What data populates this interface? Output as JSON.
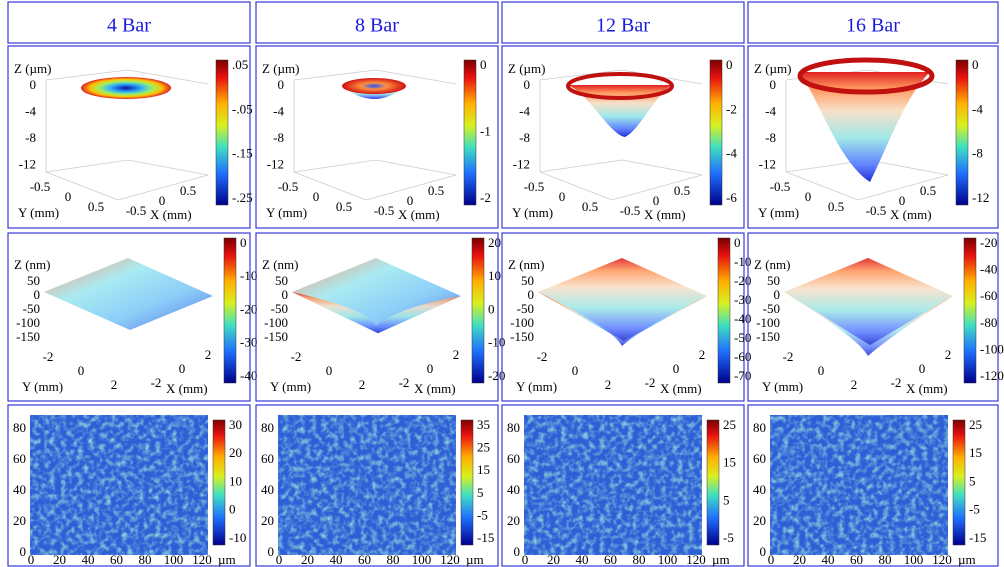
{
  "columns": [
    {
      "header": "4 Bar",
      "row1": {
        "z_label": "Z (µm)",
        "z_ticks": [
          "0",
          "-4",
          "-8",
          "-12"
        ],
        "y_label": "Y (mm)",
        "y_ticks": [
          "-0.5",
          "0",
          "0.5"
        ],
        "x_label": "X (mm)",
        "x_ticks": [
          "-0.5",
          "0",
          "0.5"
        ],
        "colorbar": [
          ".05",
          "-.05",
          "-.15",
          "-.25"
        ]
      },
      "row2": {
        "z_label": "Z (nm)",
        "z_ticks": [
          "50",
          "0",
          "-50",
          "-100",
          "-150"
        ],
        "y_label": "Y (mm)",
        "y_ticks": [
          "-2",
          "0",
          "2"
        ],
        "x_label": "X (mm)",
        "x_ticks": [
          "-2",
          "0",
          "2"
        ],
        "colorbar": [
          "0",
          "-10",
          "-20",
          "-30",
          "-40"
        ]
      },
      "row3": {
        "y_ticks": [
          "0",
          "20",
          "40",
          "60",
          "80"
        ],
        "x_ticks": [
          "0",
          "20",
          "40",
          "60",
          "80",
          "100",
          "120"
        ],
        "unit": "µm",
        "colorbar": [
          "30",
          "20",
          "10",
          "0",
          "-10"
        ]
      }
    },
    {
      "header": "8 Bar",
      "row1": {
        "z_label": "Z (µm)",
        "z_ticks": [
          "0",
          "-4",
          "-8",
          "-12"
        ],
        "y_label": "Y (mm)",
        "y_ticks": [
          "-0.5",
          "0",
          "0.5"
        ],
        "x_label": "X (mm)",
        "x_ticks": [
          "-0.5",
          "0",
          "0.5"
        ],
        "colorbar": [
          "0",
          "-1",
          "-2"
        ]
      },
      "row2": {
        "z_label": "Z (nm)",
        "z_ticks": [
          "50",
          "0",
          "-50",
          "-100",
          "-150"
        ],
        "y_label": "Y (mm)",
        "y_ticks": [
          "-2",
          "0",
          "2"
        ],
        "x_label": "X (mm)",
        "x_ticks": [
          "-2",
          "0",
          "2"
        ],
        "colorbar": [
          "20",
          "10",
          "0",
          "-10",
          "-20"
        ]
      },
      "row3": {
        "y_ticks": [
          "0",
          "20",
          "40",
          "60",
          "80"
        ],
        "x_ticks": [
          "0",
          "20",
          "40",
          "60",
          "80",
          "100",
          "120"
        ],
        "unit": "µm",
        "colorbar": [
          "35",
          "25",
          "15",
          "5",
          "-5",
          "-15"
        ]
      }
    },
    {
      "header": "12 Bar",
      "row1": {
        "z_label": "Z (µm)",
        "z_ticks": [
          "0",
          "-4",
          "-8",
          "-12"
        ],
        "y_label": "Y (mm)",
        "y_ticks": [
          "-0.5",
          "0",
          "0.5"
        ],
        "x_label": "X (mm)",
        "x_ticks": [
          "-0.5",
          "0",
          "0.5"
        ],
        "colorbar": [
          "0",
          "-2",
          "-4",
          "-6"
        ]
      },
      "row2": {
        "z_label": "Z (nm)",
        "z_ticks": [
          "50",
          "0",
          "-50",
          "-100",
          "-150"
        ],
        "y_label": "Y (mm)",
        "y_ticks": [
          "-2",
          "0",
          "2"
        ],
        "x_label": "X (mm)",
        "x_ticks": [
          "-2",
          "0",
          "2"
        ],
        "colorbar": [
          "0",
          "-10",
          "-20",
          "-30",
          "-40",
          "-50",
          "-60",
          "-70"
        ]
      },
      "row3": {
        "y_ticks": [
          "0",
          "20",
          "40",
          "60",
          "80"
        ],
        "x_ticks": [
          "0",
          "20",
          "40",
          "60",
          "80",
          "100",
          "120"
        ],
        "unit": "µm",
        "colorbar": [
          "25",
          "15",
          "5",
          "-5"
        ]
      }
    },
    {
      "header": "16 Bar",
      "row1": {
        "z_label": "Z (µm)",
        "z_ticks": [
          "0",
          "-4",
          "-8",
          "-12"
        ],
        "y_label": "Y (mm)",
        "y_ticks": [
          "-0.5",
          "0",
          "0.5"
        ],
        "x_label": "X (mm)",
        "x_ticks": [
          "-0.5",
          "0",
          "0.5"
        ],
        "colorbar": [
          "0",
          "-4",
          "-8",
          "-12"
        ]
      },
      "row2": {
        "z_label": "Z (nm)",
        "z_ticks": [
          "50",
          "0",
          "-50",
          "-100",
          "-150"
        ],
        "y_label": "Y (mm)",
        "y_ticks": [
          "-2",
          "0",
          "2"
        ],
        "x_label": "X (mm)",
        "x_ticks": [
          "-2",
          "0",
          "2"
        ],
        "colorbar": [
          "-20",
          "-40",
          "-60",
          "-80",
          "-100",
          "-120"
        ]
      },
      "row3": {
        "y_ticks": [
          "0",
          "20",
          "40",
          "60",
          "80"
        ],
        "x_ticks": [
          "0",
          "20",
          "40",
          "60",
          "80",
          "100",
          "120"
        ],
        "unit": "µm",
        "colorbar": [
          "25",
          "15",
          "5",
          "-5",
          "-15"
        ]
      }
    }
  ]
}
